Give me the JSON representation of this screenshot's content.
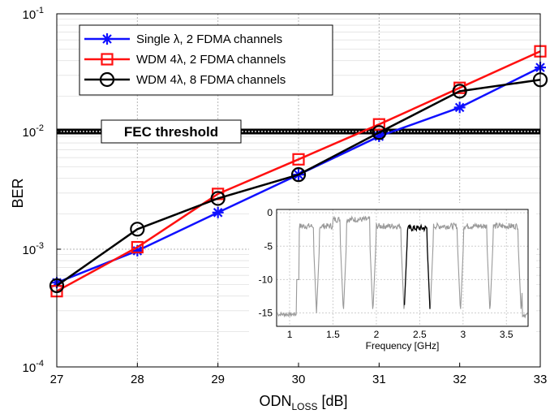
{
  "chart_data": {
    "type": "line",
    "ylabel": "BER",
    "xlabel_main": "ODN",
    "xlabel_sub": "LOSS",
    "xlabel_unit": " [dB]",
    "x": [
      27,
      28,
      29,
      30,
      31,
      32,
      33
    ],
    "xlim": [
      27,
      33
    ],
    "ylim": [
      0.0001,
      0.1
    ],
    "yscale": "log",
    "grid": true,
    "legend_position": "top-left",
    "x_ticks": [
      "27",
      "28",
      "29",
      "30",
      "31",
      "32",
      "33"
    ],
    "y_ticks": [
      {
        "base": "10",
        "exp": "-4"
      },
      {
        "base": "10",
        "exp": "-3"
      },
      {
        "base": "10",
        "exp": "-2"
      },
      {
        "base": "10",
        "exp": "-1"
      }
    ],
    "series": [
      {
        "name": "Single λ, 2 FDMA channels",
        "color": "#1010ff",
        "marker": "asterisk",
        "values": [
          0.00052,
          0.00097,
          0.00205,
          0.0043,
          0.0091,
          0.016,
          0.035
        ]
      },
      {
        "name": "WDM 4λ, 2 FDMA channels",
        "color": "#ff1010",
        "marker": "square",
        "values": [
          0.00044,
          0.00104,
          0.00295,
          0.0058,
          0.0115,
          0.0235,
          0.048
        ]
      },
      {
        "name": "WDM 4λ, 8 FDMA channels",
        "color": "#000000",
        "marker": "circle",
        "values": [
          0.00049,
          0.00148,
          0.0027,
          0.0043,
          0.0098,
          0.022,
          0.0275
        ]
      }
    ],
    "threshold": {
      "label": "FEC threshold",
      "value": 0.01
    },
    "inset": {
      "xlabel": "Frequency [GHz]",
      "xlim": [
        0.85,
        3.75
      ],
      "ylim": [
        -17,
        0.5
      ],
      "x_ticks": [
        "1",
        "1.5",
        "2",
        "2.5",
        "3",
        "3.5"
      ],
      "y_ticks": [
        "0",
        "-5",
        "-10",
        "-15"
      ],
      "trace_color": "#999999",
      "highlight_color": "#000000",
      "highlight_range": [
        2.32,
        2.62
      ]
    }
  }
}
